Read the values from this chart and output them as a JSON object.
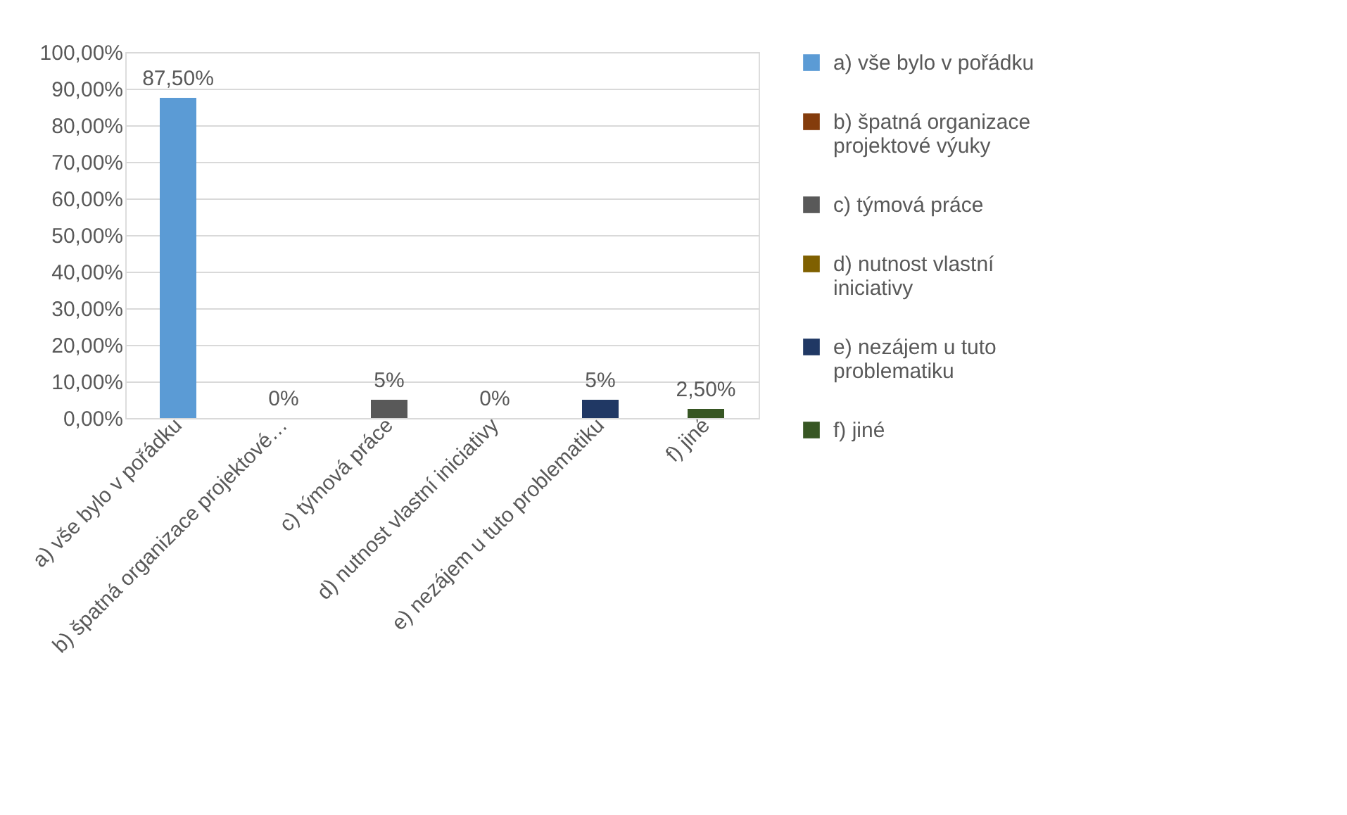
{
  "chart_data": {
    "type": "bar",
    "categories": [
      "a) vše bylo v pořádku",
      "b) špatná organizace projektové…",
      "c) týmová práce",
      "d) nutnost vlastní iniciativy",
      "e) nezájem u tuto problematiku",
      "f) jiné"
    ],
    "series": [
      {
        "name": "a) vše bylo v pořádku",
        "color": "#5b9bd5",
        "values": [
          87.5,
          null,
          null,
          null,
          null,
          null
        ],
        "value_labels": [
          "87,50%",
          null,
          null,
          null,
          null,
          null
        ]
      },
      {
        "name": "b) špatná organizace projektové výuky",
        "color": "#843c0c",
        "values": [
          null,
          0,
          null,
          null,
          null,
          null
        ],
        "value_labels": [
          null,
          "0%",
          null,
          null,
          null,
          null
        ]
      },
      {
        "name": "c) týmová práce",
        "color": "#595959",
        "values": [
          null,
          null,
          5,
          null,
          null,
          null
        ],
        "value_labels": [
          null,
          null,
          "5%",
          null,
          null,
          null
        ]
      },
      {
        "name": "d) nutnost vlastní iniciativy",
        "color": "#7f6000",
        "values": [
          null,
          null,
          null,
          0,
          null,
          null
        ],
        "value_labels": [
          null,
          null,
          null,
          "0%",
          null,
          null
        ]
      },
      {
        "name": "e) nezájem u tuto problematiku",
        "color": "#203864",
        "values": [
          null,
          null,
          null,
          null,
          5,
          null
        ],
        "value_labels": [
          null,
          null,
          null,
          null,
          "5%",
          null
        ]
      },
      {
        "name": "f) jiné",
        "color": "#375623",
        "values": [
          null,
          null,
          null,
          null,
          null,
          2.5
        ],
        "value_labels": [
          null,
          null,
          null,
          null,
          null,
          "2,50%"
        ]
      }
    ],
    "ylim": [
      0,
      100
    ],
    "yticks": [
      {
        "value": 0,
        "label": "0,00%"
      },
      {
        "value": 10,
        "label": "10,00%"
      },
      {
        "value": 20,
        "label": "20,00%"
      },
      {
        "value": 30,
        "label": "30,00%"
      },
      {
        "value": 40,
        "label": "40,00%"
      },
      {
        "value": 50,
        "label": "50,00%"
      },
      {
        "value": 60,
        "label": "60,00%"
      },
      {
        "value": 70,
        "label": "70,00%"
      },
      {
        "value": 80,
        "label": "80,00%"
      },
      {
        "value": 90,
        "label": "90,00%"
      },
      {
        "value": 100,
        "label": "100,00%"
      }
    ],
    "grid": "y",
    "legend": "right"
  }
}
